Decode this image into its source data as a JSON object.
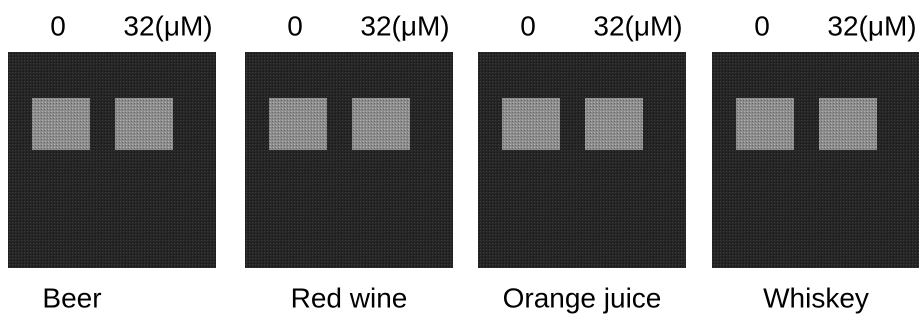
{
  "panels": [
    {
      "lanes": [
        "0",
        "32(μM)"
      ],
      "caption": "Beer"
    },
    {
      "lanes": [
        "0",
        "32(μM)"
      ],
      "caption": "Red wine"
    },
    {
      "lanes": [
        "0",
        "32(μM)"
      ],
      "caption": "Orange juice"
    },
    {
      "lanes": [
        "0",
        "32(μM)"
      ],
      "caption": "Whiskey"
    }
  ]
}
